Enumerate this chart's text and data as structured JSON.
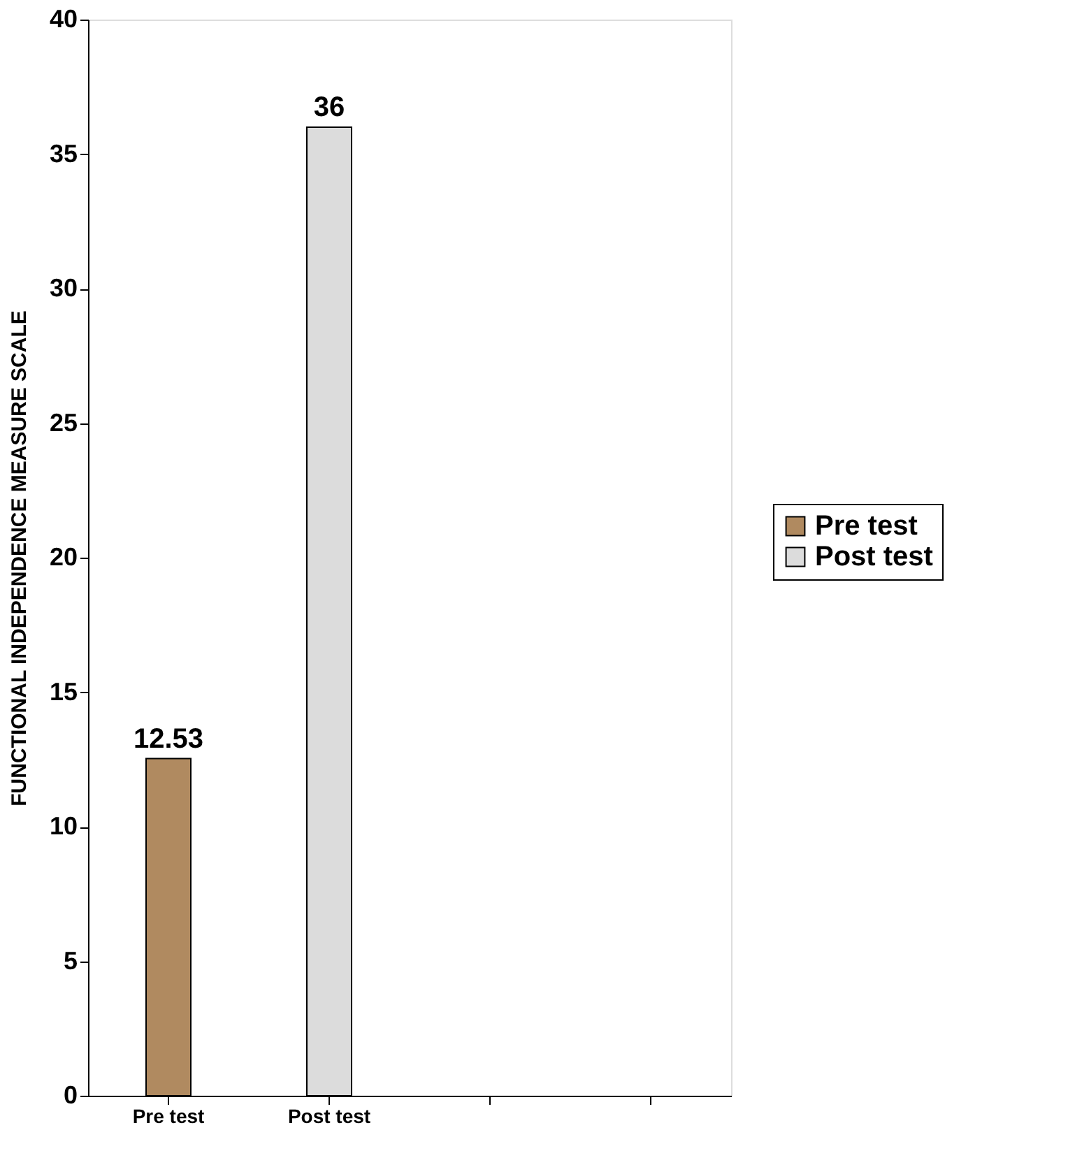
{
  "chart_data": {
    "type": "bar",
    "ylabel": "FUNCTIONAL INDEPENDENCE MEASURE SCALE",
    "categories": [
      "Pre test",
      "Post test",
      null,
      null
    ],
    "series": [
      {
        "name": "Pre test",
        "color": "#b08a60",
        "values": [
          12.53,
          null,
          null,
          null
        ]
      },
      {
        "name": "Post test",
        "color": "#dcdcdc",
        "values": [
          null,
          36,
          null,
          null
        ]
      }
    ],
    "ylim": [
      0,
      40
    ],
    "yticks": [
      0,
      5,
      10,
      15,
      20,
      25,
      30,
      35,
      40
    ],
    "grid": false,
    "legend": "right",
    "data_labels": true
  }
}
